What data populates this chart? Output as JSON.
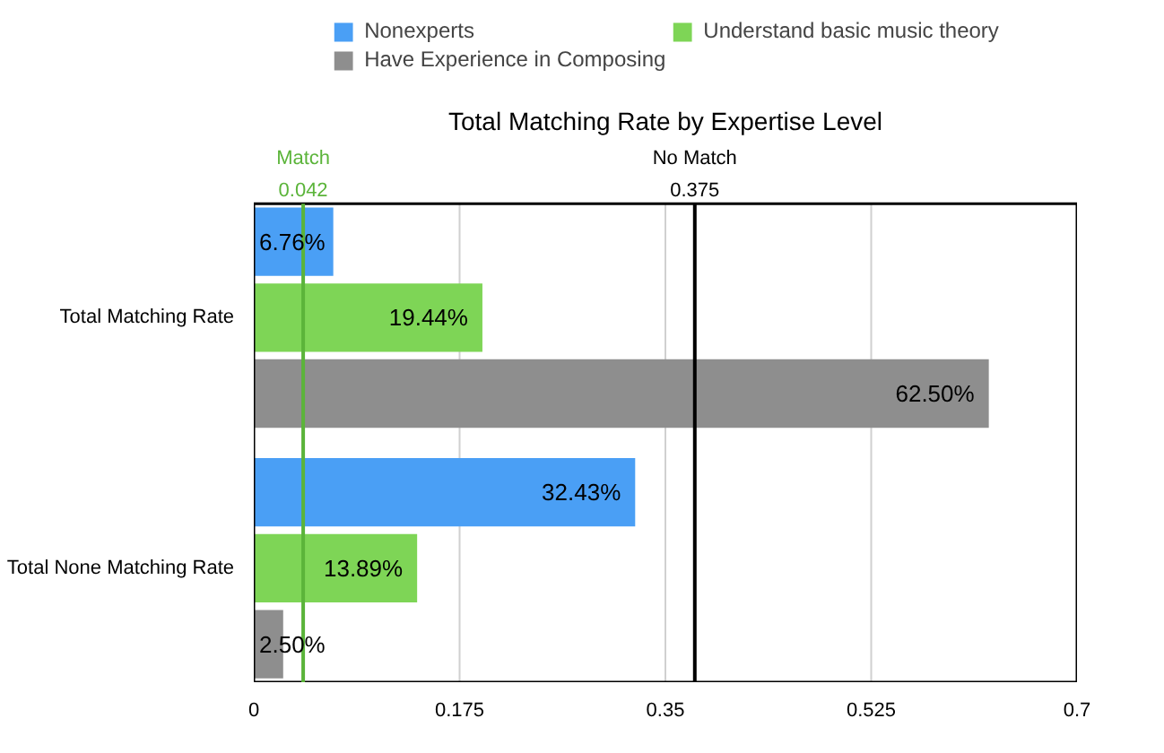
{
  "chart_data": {
    "type": "bar",
    "orientation": "horizontal",
    "title": "Total Matching Rate by Expertise Level",
    "categories": [
      "Total Matching Rate",
      "Total None Matching Rate"
    ],
    "series": [
      {
        "name": "Nonexperts",
        "color": "#4a9ff5",
        "values": [
          0.0676,
          0.3243
        ],
        "value_labels": [
          "6.76%",
          "32.43%"
        ]
      },
      {
        "name": "Understand basic music theory",
        "color": "#7ed556",
        "values": [
          0.1944,
          0.1389
        ],
        "value_labels": [
          "19.44%",
          "13.89%"
        ]
      },
      {
        "name": "Have Experience in Composing",
        "color": "#8e8e8e",
        "values": [
          0.625,
          0.025
        ],
        "value_labels": [
          "62.50%",
          "2.50%"
        ]
      }
    ],
    "xlim": [
      0,
      0.7
    ],
    "xticks": [
      0,
      0.175,
      0.35,
      0.525,
      0.7
    ],
    "ref_lines": [
      {
        "axis": "x",
        "value": 0.042,
        "label": "Match\n0.042",
        "color": "#5bb43a"
      },
      {
        "axis": "x",
        "value": 0.375,
        "label": "No Match\n0.375",
        "color": "#000000"
      }
    ],
    "grid": "x",
    "legend": "top"
  }
}
